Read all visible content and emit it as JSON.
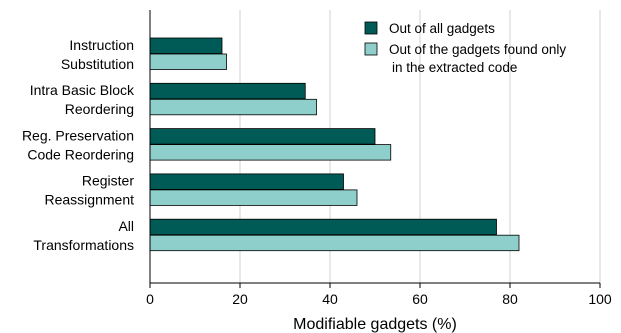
{
  "chart_data": {
    "type": "bar",
    "orientation": "horizontal",
    "title": "",
    "xlabel": "Modifiable gadgets (%)",
    "ylabel": "",
    "xlim": [
      0,
      100
    ],
    "xticks": [
      0,
      20,
      40,
      60,
      80,
      100
    ],
    "grid": "vertical",
    "legend_position": "top-right",
    "categories": [
      {
        "lines": [
          "Instruction",
          "Substitution"
        ]
      },
      {
        "lines": [
          "Intra Basic Block",
          "Reordering"
        ]
      },
      {
        "lines": [
          "Reg. Preservation",
          "Code Reordering"
        ]
      },
      {
        "lines": [
          "Register",
          "Reassignment"
        ]
      },
      {
        "lines": [
          "All",
          "Transformations"
        ]
      }
    ],
    "series": [
      {
        "name_lines": [
          "Out of all gadgets"
        ],
        "color": "#005a55",
        "values": [
          16,
          34.5,
          50,
          43,
          77
        ]
      },
      {
        "name_lines": [
          "Out of the gadgets found only",
          "in the extracted code"
        ],
        "color": "#8ecfcb",
        "values": [
          17,
          37,
          53.5,
          46,
          82
        ]
      }
    ]
  }
}
